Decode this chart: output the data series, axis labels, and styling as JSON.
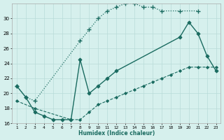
{
  "xlabel": "Humidex (Indice chaleur)",
  "bg_color": "#d6f0ed",
  "grid_color": "#b8dbd8",
  "line_color": "#1a6b60",
  "curve1_x": [
    1,
    2,
    3,
    8,
    9,
    10,
    11,
    12,
    13,
    14,
    15,
    16,
    17,
    19,
    21
  ],
  "curve1_y": [
    21,
    19.5,
    19,
    27,
    28.5,
    30,
    31,
    31.5,
    32,
    32,
    31.5,
    31.5,
    31,
    31,
    31
  ],
  "curve2_x": [
    1,
    2,
    3,
    4,
    5,
    6,
    7,
    8,
    9,
    10,
    11,
    12,
    19,
    20,
    21,
    22,
    23
  ],
  "curve2_y": [
    21,
    19.5,
    17.5,
    17,
    16.5,
    16.5,
    16.5,
    24.5,
    20,
    21,
    22,
    23,
    27.5,
    29.5,
    28,
    25,
    23
  ],
  "curve3_x": [
    1,
    3,
    7,
    8,
    9,
    10,
    11,
    12,
    13,
    14,
    15,
    16,
    17,
    18,
    19,
    20,
    21,
    22,
    23
  ],
  "curve3_y": [
    19,
    18,
    16.5,
    16.5,
    17.5,
    18.5,
    19,
    19.5,
    20,
    20.5,
    21,
    21.5,
    22,
    22.5,
    23,
    23.5,
    23.5,
    23.5,
    23.5
  ],
  "ylim": [
    16,
    32
  ],
  "xlim": [
    0.5,
    23.5
  ],
  "yticks": [
    16,
    18,
    20,
    22,
    24,
    26,
    28,
    30
  ],
  "xticks": [
    1,
    2,
    3,
    4,
    5,
    6,
    7,
    8,
    9,
    10,
    11,
    12,
    13,
    14,
    15,
    16,
    17,
    18,
    19,
    20,
    21,
    22,
    23
  ]
}
